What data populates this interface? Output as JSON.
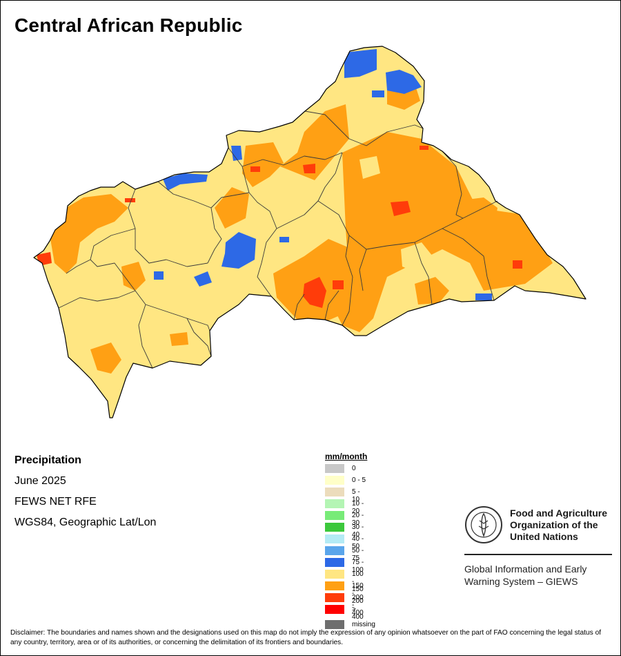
{
  "title": "Central African Republic",
  "info": {
    "variable": "Precipitation",
    "period": "June 2025",
    "source": "FEWS NET RFE",
    "projection": "WGS84, Geographic Lat/Lon"
  },
  "legend": {
    "unit": "mm/month",
    "classes": [
      {
        "label": "0",
        "color": "#c8c8c8"
      },
      {
        "label": "0 - 5",
        "color": "#ffffc8"
      },
      {
        "label": "5 - 10",
        "color": "#ecdcbc"
      },
      {
        "label": "10 - 20",
        "color": "#b4f5b4"
      },
      {
        "label": "20 - 30",
        "color": "#78eb78"
      },
      {
        "label": "30 - 40",
        "color": "#3cc83c"
      },
      {
        "label": "40 - 50",
        "color": "#b4ebf5"
      },
      {
        "label": "50 - 75",
        "color": "#5aa5eb"
      },
      {
        "label": "75 - 100",
        "color": "#2d69e6"
      },
      {
        "label": "100 - 150",
        "color": "#ffe682"
      },
      {
        "label": "150 - 200",
        "color": "#ffa014"
      },
      {
        "label": "200 - 400",
        "color": "#ff3c0a"
      },
      {
        "label": "> 400",
        "color": "#ff0000"
      }
    ],
    "missing": {
      "label": "missing",
      "color": "#6e6e6e"
    }
  },
  "organization": {
    "name_lines": [
      "Food and Agriculture",
      "Organization of the",
      "United Nations"
    ],
    "logo_text": "FAO",
    "logo_motto": "FIAT PANIS",
    "system_lines": [
      "Global Information and Early",
      "Warning System – GIEWS"
    ]
  },
  "disclaimer": "Disclaimer: The boundaries and names shown and the designations used on this map do not imply the expression of any opinion whatsoever on the part of FAO concerning the legal status of any country, territory, area or of its authorities, or concerning the delimitation of its frontiers and boundaries."
}
